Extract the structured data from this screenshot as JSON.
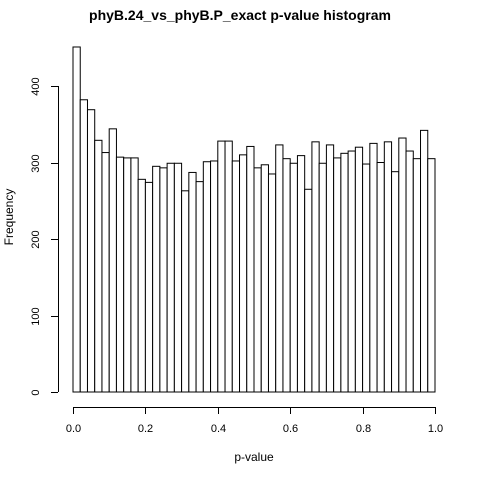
{
  "chart_data": {
    "type": "bar",
    "title": "phyB.24_vs_phyB.P_exact p-value histogram",
    "xlabel": "p-value",
    "ylabel": "Frequency",
    "xlim": [
      0.0,
      1.0
    ],
    "ylim": [
      0,
      450
    ],
    "x_ticks": [
      "0.0",
      "0.2",
      "0.4",
      "0.6",
      "0.8",
      "1.0"
    ],
    "y_ticks": [
      "0",
      "100",
      "200",
      "300",
      "400"
    ],
    "bin_width": 0.02,
    "values": [
      451,
      382,
      369,
      329,
      313,
      344,
      307,
      306,
      306,
      278,
      274,
      295,
      293,
      299,
      299,
      263,
      287,
      275,
      301,
      302,
      328,
      328,
      302,
      310,
      321,
      293,
      297,
      285,
      323,
      305,
      299,
      309,
      265,
      327,
      299,
      323,
      306,
      312,
      315,
      320,
      298,
      325,
      300,
      327,
      288,
      332,
      315,
      305,
      342,
      305
    ]
  }
}
